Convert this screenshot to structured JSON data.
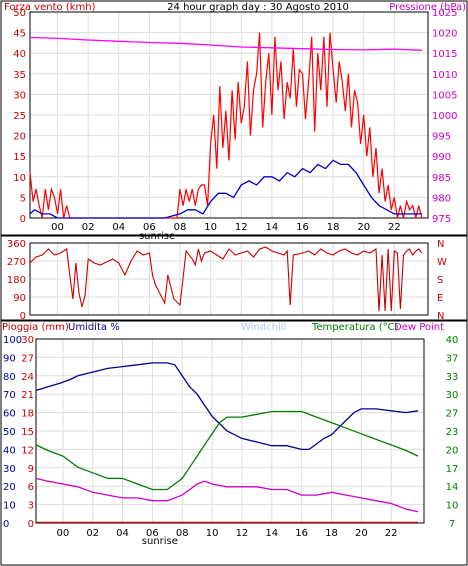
{
  "colors": {
    "wind": "#ff0000",
    "gust": "#ff0000",
    "avg_wind": "#0000cc",
    "pressure": "#ff00ff",
    "direction": "#cc0000",
    "rain": "#cc0000",
    "humidity": "#000099",
    "windchill": "#aaccff",
    "temperature": "#008000",
    "dew_point": "#cc00cc",
    "grid": "#dddddd"
  },
  "chart_data": [
    {
      "type": "line",
      "title": "24 hour graph day : 30 Agosto 2010",
      "left_axis_label": "Forza vento (kmh)",
      "right_axis_label": "Pressione (hPa)",
      "ylim_left": [
        0,
        50
      ],
      "ylim_right": [
        975,
        1025
      ],
      "yticks_left": [
        "0",
        "5",
        "10",
        "15",
        "20",
        "25",
        "30",
        "35",
        "40",
        "45",
        "50"
      ],
      "yticks_right": [
        "975",
        "980",
        "985",
        "990",
        "995",
        "1000",
        "1005",
        "1010",
        "1015",
        "1020",
        "1025"
      ],
      "x_ticks": [
        "00",
        "02",
        "04",
        "06",
        "08",
        "10",
        "12",
        "14",
        "16",
        "18",
        "20",
        "22"
      ],
      "sunrise_label": "sunrise",
      "xlim_hours": [
        -1.8,
        24.2
      ],
      "grid": true,
      "series": [
        {
          "key": "gust",
          "color_key": "gust",
          "axis": "left",
          "hours": [
            -1.8,
            -1.6,
            -1.4,
            -1.2,
            -1.0,
            -0.8,
            -0.6,
            -0.4,
            -0.2,
            0.0,
            0.2,
            0.4,
            0.6,
            0.8,
            1.0,
            2.0,
            3.0,
            4.0,
            5.0,
            6.0,
            7.0,
            7.8,
            8.0,
            8.2,
            8.4,
            8.6,
            8.8,
            9.0,
            9.2,
            9.4,
            9.6,
            9.8,
            10.0,
            10.2,
            10.4,
            10.6,
            10.8,
            11.0,
            11.2,
            11.4,
            11.6,
            11.8,
            12.0,
            12.2,
            12.4,
            12.6,
            12.8,
            13.0,
            13.2,
            13.4,
            13.6,
            13.8,
            14.0,
            14.2,
            14.4,
            14.6,
            14.8,
            15.0,
            15.2,
            15.4,
            15.6,
            15.8,
            16.0,
            16.2,
            16.4,
            16.6,
            16.8,
            17.0,
            17.2,
            17.4,
            17.6,
            17.8,
            18.0,
            18.2,
            18.4,
            18.6,
            18.8,
            19.0,
            19.2,
            19.4,
            19.6,
            19.8,
            20.0,
            20.2,
            20.4,
            20.6,
            20.8,
            21.0,
            21.2,
            21.4,
            21.6,
            21.8,
            22.0,
            22.2,
            22.4,
            22.6,
            22.8,
            23.0,
            23.2,
            23.4,
            23.6,
            23.8
          ],
          "values": [
            11,
            4,
            7,
            3,
            0,
            7,
            2,
            7,
            5,
            1,
            7,
            0,
            3,
            0,
            0,
            0,
            0,
            0,
            0,
            0,
            0,
            0,
            7,
            3,
            7,
            4,
            7,
            3,
            7,
            8,
            8,
            3,
            18,
            25,
            12,
            32,
            17,
            26,
            14,
            31,
            19,
            33,
            23,
            27,
            38,
            20,
            31,
            35,
            45,
            22,
            33,
            40,
            25,
            44,
            31,
            38,
            24,
            33,
            29,
            41,
            27,
            36,
            35,
            24,
            33,
            44,
            21,
            40,
            31,
            44,
            27,
            45,
            36,
            28,
            38,
            33,
            26,
            35,
            22,
            31,
            28,
            18,
            25,
            15,
            22,
            10,
            17,
            6,
            12,
            4,
            8,
            2,
            5,
            0,
            3,
            0,
            4,
            2,
            3,
            0,
            3,
            0
          ]
        },
        {
          "key": "avg_wind",
          "color_key": "avg_wind",
          "axis": "left",
          "hours": [
            -1.8,
            -1.5,
            -1.0,
            -0.5,
            0.0,
            1.0,
            2.0,
            3.0,
            4.0,
            5.0,
            6.0,
            7.0,
            8.0,
            8.5,
            9.0,
            9.5,
            10.0,
            10.5,
            11.0,
            11.5,
            12.0,
            12.5,
            13.0,
            13.5,
            14.0,
            14.5,
            15.0,
            15.5,
            16.0,
            16.5,
            17.0,
            17.5,
            18.0,
            18.5,
            19.0,
            19.5,
            20.0,
            20.5,
            21.0,
            21.5,
            22.0,
            22.5,
            23.0,
            23.5,
            23.8
          ],
          "values": [
            1,
            2,
            1,
            1,
            0,
            0,
            0,
            0,
            0,
            0,
            0,
            0,
            1,
            2,
            2,
            1,
            4,
            6,
            6,
            5,
            8,
            9,
            8,
            10,
            10,
            9,
            11,
            10,
            12,
            11,
            13,
            12,
            14,
            13,
            13,
            11,
            8,
            5,
            3,
            2,
            1,
            1,
            1,
            1,
            1
          ]
        },
        {
          "key": "pressure",
          "color_key": "pressure",
          "axis": "right",
          "hours": [
            -1.8,
            0,
            2,
            4,
            6,
            8,
            10,
            12,
            14,
            16,
            18,
            20,
            22,
            23.8
          ],
          "values": [
            1018.8,
            1018.6,
            1018.2,
            1017.9,
            1017.6,
            1017.4,
            1017.0,
            1016.5,
            1016.3,
            1016.1,
            1015.9,
            1015.8,
            1016.0,
            1015.7
          ]
        }
      ]
    },
    {
      "type": "line",
      "direction_labels": [
        "N",
        "W",
        "S",
        "E",
        "N"
      ],
      "yticks_left": [
        "0",
        "90",
        "180",
        "270",
        "360"
      ],
      "ylim": [
        0,
        360
      ],
      "xlim_hours": [
        -1.8,
        24.2
      ],
      "grid": true,
      "series": [
        {
          "key": "wind_direction",
          "color_key": "direction",
          "hours": [
            -1.8,
            -1.4,
            -1.0,
            -0.6,
            -0.2,
            0.2,
            0.6,
            0.8,
            1.0,
            1.2,
            1.4,
            1.6,
            1.8,
            2.0,
            2.4,
            2.8,
            3.2,
            3.6,
            4.0,
            4.4,
            4.8,
            5.2,
            5.6,
            6.0,
            6.2,
            6.4,
            6.6,
            6.8,
            7.0,
            7.2,
            7.6,
            8.0,
            8.4,
            8.8,
            9.0,
            9.2,
            9.4,
            9.6,
            10.0,
            10.4,
            10.8,
            11.2,
            11.6,
            12.0,
            12.4,
            12.8,
            13.2,
            13.6,
            14.0,
            14.4,
            14.8,
            15.0,
            15.2,
            15.4,
            16.0,
            16.4,
            16.8,
            17.2,
            17.6,
            18.0,
            18.4,
            18.8,
            19.2,
            19.6,
            20.0,
            20.4,
            20.8,
            21.0,
            21.2,
            21.4,
            21.6,
            21.8,
            22.0,
            22.2,
            22.4,
            22.6,
            22.8,
            23.0,
            23.2,
            23.4,
            23.6,
            23.8
          ],
          "values": [
            260,
            290,
            300,
            330,
            300,
            310,
            330,
            200,
            80,
            260,
            110,
            40,
            100,
            280,
            260,
            250,
            265,
            280,
            260,
            200,
            270,
            320,
            300,
            310,
            200,
            150,
            120,
            90,
            60,
            200,
            80,
            50,
            320,
            280,
            250,
            330,
            270,
            310,
            320,
            300,
            280,
            330,
            300,
            310,
            320,
            290,
            330,
            340,
            320,
            310,
            300,
            320,
            50,
            300,
            310,
            320,
            300,
            330,
            310,
            300,
            320,
            330,
            310,
            300,
            320,
            310,
            330,
            20,
            300,
            20,
            330,
            20,
            320,
            310,
            30,
            300,
            320,
            330,
            300,
            320,
            330,
            310
          ]
        }
      ]
    },
    {
      "type": "line",
      "legend": [
        "Pioggia (mm)",
        "Umidita %",
        "Windchill",
        "Temperatura (°C)",
        "Dew Point"
      ],
      "yticks_humidity": [
        "0",
        "10",
        "20",
        "30",
        "40",
        "50",
        "60",
        "70",
        "80",
        "90",
        "100"
      ],
      "yticks_rain": [
        "0",
        "3",
        "6",
        "9",
        "12",
        "15",
        "18",
        "21",
        "24",
        "27",
        "30"
      ],
      "yticks_temp": [
        "7",
        "10",
        "14",
        "17",
        "20",
        "23",
        "27",
        "30",
        "33",
        "37",
        "40"
      ],
      "ylim_humidity": [
        0,
        100
      ],
      "ylim_temp": [
        7,
        40
      ],
      "x_ticks": [
        "00",
        "02",
        "04",
        "06",
        "08",
        "10",
        "12",
        "14",
        "16",
        "18",
        "20",
        "22"
      ],
      "sunrise_label": "sunrise",
      "xlim_hours": [
        -1.8,
        24.2
      ],
      "grid": true,
      "series": [
        {
          "key": "humidity",
          "color_key": "humidity",
          "axis": "humidity",
          "hours": [
            -1.8,
            -1.0,
            -0.2,
            0.5,
            1.0,
            2.0,
            3.0,
            4.0,
            5.0,
            6.0,
            7.0,
            7.5,
            8.0,
            8.5,
            9.0,
            9.5,
            10.0,
            10.5,
            11.0,
            11.5,
            12.0,
            13.0,
            14.0,
            15.0,
            16.0,
            16.5,
            17.0,
            17.5,
            18.0,
            18.5,
            19.0,
            19.5,
            20.0,
            21.0,
            22.0,
            23.0,
            23.8
          ],
          "values": [
            72,
            74,
            76,
            78,
            80,
            82,
            84,
            85,
            86,
            87,
            87,
            86,
            80,
            74,
            70,
            64,
            58,
            54,
            50,
            48,
            46,
            44,
            42,
            42,
            40,
            40,
            43,
            46,
            48,
            52,
            56,
            60,
            62,
            62,
            61,
            60,
            61
          ]
        },
        {
          "key": "temperature",
          "color_key": "temperature",
          "axis": "temp",
          "hours": [
            -1.8,
            -1.0,
            0.0,
            1.0,
            2.0,
            3.0,
            4.0,
            5.0,
            6.0,
            7.0,
            7.5,
            8.0,
            8.5,
            9.0,
            9.5,
            10.0,
            10.5,
            11.0,
            11.5,
            12.0,
            13.0,
            14.0,
            15.0,
            16.0,
            17.0,
            18.0,
            19.0,
            20.0,
            21.0,
            22.0,
            23.0,
            23.8
          ],
          "values": [
            21,
            20,
            19,
            17,
            16,
            15,
            15,
            14,
            13,
            13,
            14,
            15,
            17,
            19,
            21,
            23,
            25,
            26,
            26,
            26,
            26.5,
            27,
            27,
            27,
            26,
            25,
            24,
            23,
            22,
            21,
            20,
            19
          ]
        },
        {
          "key": "dew_point",
          "color_key": "dew_point",
          "axis": "temp",
          "hours": [
            -1.8,
            -1.0,
            0.0,
            1.0,
            2.0,
            3.0,
            4.0,
            5.0,
            6.0,
            7.0,
            8.0,
            9.0,
            9.5,
            10.0,
            11.0,
            12.0,
            13.0,
            14.0,
            15.0,
            16.0,
            17.0,
            18.0,
            19.0,
            20.0,
            21.0,
            22.0,
            23.0,
            23.8
          ],
          "values": [
            15,
            14.5,
            14,
            13.5,
            12.5,
            12,
            11.5,
            11.5,
            11,
            11,
            12,
            14,
            14.5,
            14,
            13.5,
            13.5,
            13.5,
            13,
            13,
            12,
            12,
            12.5,
            12,
            11.5,
            11,
            10.5,
            9.5,
            9
          ]
        },
        {
          "key": "rain",
          "color_key": "rain",
          "axis": "humidity",
          "hours": [
            -1.8,
            23.8
          ],
          "values": [
            0.3,
            0.3
          ]
        }
      ]
    }
  ]
}
